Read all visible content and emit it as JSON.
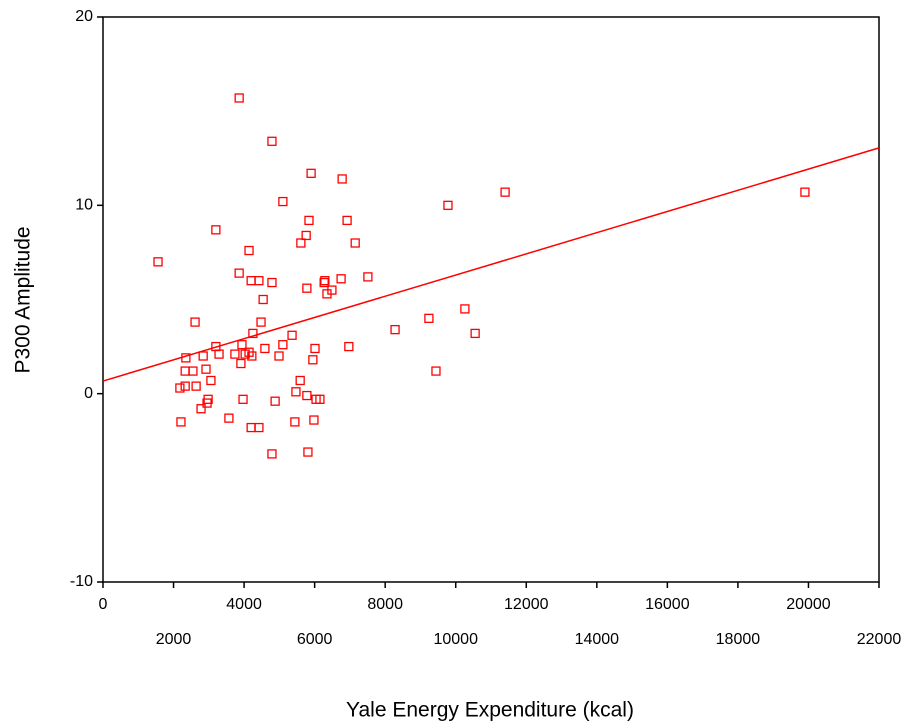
{
  "chart_data": {
    "type": "scatter",
    "xlabel": "Yale Energy Expenditure (kcal)",
    "ylabel": "P300 Amplitude",
    "color": "#ff0000",
    "x": [
      1560,
      2180,
      2210,
      2330,
      2350,
      2330,
      2550,
      2640,
      2610,
      2840,
      2780,
      2920,
      2950,
      2980,
      3060,
      3200,
      3200,
      3290,
      3570,
      3740,
      3860,
      3860,
      3910,
      3940,
      3970,
      4030,
      4140,
      4140,
      4200,
      4200,
      4250,
      4220,
      4420,
      4420,
      4480,
      4540,
      4590,
      4790,
      4790,
      4880,
      4790,
      4990,
      5100,
      5100,
      5360,
      5440,
      5470,
      5590,
      5610,
      5760,
      5780,
      5780,
      5840,
      5810,
      5900,
      5950,
      5980,
      6010,
      6040,
      6150,
      6270,
      6290,
      6350,
      6490,
      6780,
      6750,
      6920,
      6970,
      7150,
      7510,
      8280,
      9240,
      9440,
      9780,
      10260,
      10550,
      11400,
      19900
    ],
    "values": [
      7.0,
      0.3,
      -1.5,
      1.2,
      1.9,
      0.4,
      1.2,
      0.4,
      3.8,
      2.0,
      -0.8,
      1.3,
      -0.5,
      -0.3,
      0.7,
      8.7,
      2.5,
      2.1,
      -1.3,
      2.1,
      15.7,
      6.4,
      1.6,
      2.6,
      -0.3,
      2.1,
      2.2,
      7.6,
      6.0,
      -1.8,
      3.2,
      2.0,
      -1.8,
      6.0,
      3.8,
      5.0,
      2.4,
      13.4,
      5.9,
      -0.4,
      -3.2,
      2.0,
      10.2,
      2.6,
      3.1,
      -1.5,
      0.1,
      0.7,
      8.0,
      8.4,
      5.6,
      -0.1,
      9.2,
      -3.1,
      11.7,
      1.8,
      -1.4,
      2.4,
      -0.3,
      -0.3,
      5.9,
      6.0,
      5.3,
      5.5,
      11.4,
      6.1,
      9.2,
      2.5,
      8.0,
      6.2,
      3.4,
      4.0,
      1.2,
      10.0,
      4.5,
      3.2,
      10.7,
      10.7
    ],
    "fit": {
      "x": [
        0,
        22000
      ],
      "values": [
        0.67,
        13.05
      ]
    },
    "xlim": [
      0,
      22000
    ],
    "xticks": [
      0,
      2000,
      4000,
      6000,
      8000,
      10000,
      12000,
      14000,
      16000,
      18000,
      20000,
      22000
    ],
    "ylim": [
      -10,
      20
    ],
    "yticks": [
      -10,
      0,
      10,
      20
    ]
  }
}
